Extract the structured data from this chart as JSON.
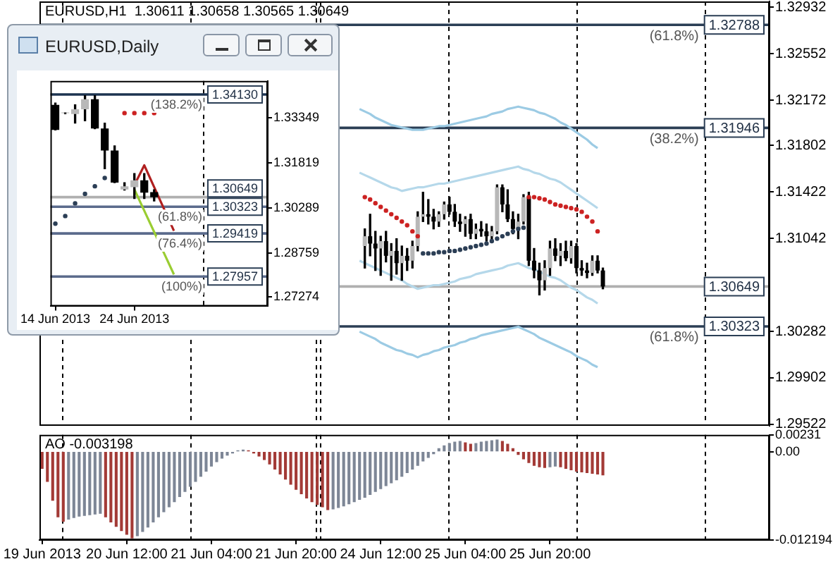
{
  "chart_data": [
    {
      "type": "candlestick",
      "title": "EURUSD,H1  1.30611 1.30658 1.30565 1.30649",
      "categories": [
        null,
        null,
        null,
        null,
        null,
        null,
        null,
        null,
        null,
        null,
        null,
        null,
        null,
        null,
        null,
        null,
        null,
        null,
        null,
        null,
        null,
        null,
        null,
        null,
        null,
        null,
        null,
        null,
        null,
        null,
        null,
        null,
        null,
        null,
        null,
        null,
        null,
        null,
        null,
        null,
        null,
        null,
        null,
        null,
        null,
        null,
        null,
        null,
        null,
        null,
        null,
        null,
        null,
        null,
        null,
        null,
        null,
        null,
        null,
        null,
        null,
        null,
        null,
        null,
        null,
        null,
        null,
        null,
        null,
        null,
        null,
        null,
        null,
        null,
        null,
        null,
        null,
        null,
        null,
        null,
        null,
        null,
        null,
        null,
        null,
        null,
        null,
        null,
        null,
        null,
        null,
        null,
        null,
        null,
        null,
        null,
        null,
        null,
        null,
        null,
        null,
        null,
        null,
        null,
        null,
        null,
        null,
        null,
        null,
        null,
        null,
        null,
        null,
        null,
        null,
        null,
        null,
        null,
        null,
        null,
        null,
        null,
        null,
        null,
        null,
        null,
        null,
        null,
        null,
        null,
        null,
        null,
        null,
        null,
        null,
        null,
        null,
        null
      ],
      "ohlc": [
        null,
        null,
        null,
        null,
        null,
        null,
        null,
        null,
        null,
        null,
        null,
        null,
        null,
        null,
        null,
        null,
        null,
        null,
        null,
        null,
        null,
        null,
        null,
        null,
        null,
        null,
        null,
        null,
        null,
        null,
        null,
        null,
        null,
        null,
        null,
        null,
        null,
        null,
        null,
        null,
        null,
        null,
        null,
        null,
        null,
        null,
        null,
        null,
        null,
        null,
        null,
        null,
        null,
        null,
        null,
        null,
        null,
        null,
        null,
        null,
        null,
        [
          1.3098,
          1.3112,
          1.308,
          1.3106
        ],
        [
          1.3106,
          1.3124,
          1.309,
          1.31
        ],
        [
          1.31,
          1.311,
          1.3078,
          1.3096
        ],
        [
          1.3096,
          1.3106,
          1.3074,
          1.3102
        ],
        [
          1.3102,
          1.311,
          1.3085,
          1.309
        ],
        [
          1.309,
          1.31,
          1.307,
          1.3094
        ],
        [
          1.3094,
          1.3104,
          1.3075,
          1.3084
        ],
        [
          1.3084,
          1.3098,
          1.307,
          1.309
        ],
        [
          1.309,
          1.3096,
          1.3078,
          1.3086
        ],
        [
          1.3086,
          1.3102,
          1.308,
          1.3098
        ],
        [
          1.3098,
          1.3126,
          1.3094,
          1.3122
        ],
        [
          1.3122,
          1.3142,
          1.3118,
          1.3124
        ],
        [
          1.3124,
          1.3136,
          1.3116,
          1.3122
        ],
        [
          1.3122,
          1.3128,
          1.3112,
          1.3118
        ],
        [
          1.3118,
          1.3126,
          1.3114,
          1.3124
        ],
        [
          1.3124,
          1.3134,
          1.312,
          1.3132
        ],
        [
          1.3132,
          1.3138,
          1.3124,
          1.3126
        ],
        [
          1.3126,
          1.3132,
          1.3114,
          1.3118
        ],
        [
          1.3118,
          1.3124,
          1.311,
          1.3116
        ],
        [
          1.3116,
          1.3122,
          1.3106,
          1.312
        ],
        [
          1.312,
          1.3124,
          1.3104,
          1.3108
        ],
        [
          1.3108,
          1.3116,
          1.3104,
          1.3112
        ],
        [
          1.3112,
          1.3118,
          1.3106,
          1.311
        ],
        [
          1.311,
          1.3116,
          1.3102,
          1.3106
        ],
        [
          1.3106,
          1.3114,
          1.3102,
          1.311
        ],
        [
          1.311,
          1.3148,
          1.3108,
          1.3146
        ],
        [
          1.3146,
          1.3148,
          1.3126,
          1.3132
        ],
        [
          1.3132,
          1.3144,
          1.3118,
          1.312
        ],
        [
          1.312,
          1.3126,
          1.3108,
          1.3112
        ],
        [
          1.3112,
          1.3124,
          1.3104,
          1.3118
        ],
        [
          1.3118,
          1.314,
          1.3116,
          1.3138
        ],
        [
          1.3138,
          1.3142,
          1.3082,
          1.3086
        ],
        [
          1.3086,
          1.3096,
          1.3072,
          1.3078
        ],
        [
          1.3078,
          1.3084,
          1.3058,
          1.307
        ],
        [
          1.307,
          1.3086,
          1.3062,
          1.308
        ],
        [
          1.308,
          1.3102,
          1.3074,
          1.3096
        ],
        [
          1.3096,
          1.3104,
          1.3086,
          1.309
        ],
        [
          1.309,
          1.31,
          1.3082,
          1.3094
        ],
        [
          1.3094,
          1.3102,
          1.3086,
          1.3088
        ],
        [
          1.3088,
          1.3102,
          1.3084,
          1.3098
        ],
        [
          1.3098,
          1.31,
          1.3076,
          1.308
        ],
        [
          1.308,
          1.3086,
          1.3074,
          1.3078
        ],
        [
          1.3078,
          1.3084,
          1.3072,
          1.3076
        ],
        [
          1.3076,
          1.309,
          1.3074,
          1.3086
        ],
        [
          1.3086,
          1.309,
          1.3076,
          1.3078
        ],
        [
          1.3078,
          1.308,
          1.3063,
          1.30649
        ],
        null,
        null,
        null,
        null,
        null,
        null,
        null,
        null,
        null,
        null,
        null,
        null,
        null,
        null,
        null,
        null,
        null,
        null,
        null,
        null,
        null,
        null,
        null,
        null,
        null,
        null,
        null,
        null,
        null,
        null,
        null
      ],
      "series": [
        {
          "type": "line",
          "color": "#9ccbe4",
          "values": [
            null,
            null,
            null,
            null,
            null,
            null,
            null,
            null,
            null,
            null,
            null,
            null,
            null,
            null,
            null,
            null,
            null,
            null,
            null,
            null,
            null,
            null,
            null,
            null,
            null,
            null,
            null,
            null,
            null,
            null,
            null,
            null,
            null,
            null,
            null,
            null,
            null,
            null,
            null,
            null,
            null,
            null,
            null,
            null,
            null,
            null,
            null,
            null,
            null,
            null,
            null,
            null,
            null,
            null,
            null,
            null,
            null,
            null,
            null,
            null,
            1.321,
            1.3208,
            1.3206,
            1.3203,
            1.3201,
            1.3199,
            1.3197,
            1.3196,
            1.3195,
            1.3194,
            1.3193,
            1.3193,
            1.3193,
            1.3194,
            1.3195,
            1.3196,
            1.3196,
            1.3197,
            1.3198,
            1.3199,
            1.32,
            1.3201,
            1.3202,
            1.3203,
            1.3204,
            1.3206,
            1.3207,
            1.3208,
            1.321,
            1.3211,
            1.3212,
            1.3211,
            1.321,
            1.3209,
            1.3207,
            1.3206,
            1.3204,
            1.3202,
            1.3199,
            1.3197,
            1.3194,
            1.3191,
            1.3188,
            1.3185,
            1.3181,
            1.3178,
            null,
            null,
            null,
            null,
            null,
            null,
            null,
            null,
            null,
            null,
            null,
            null,
            null,
            null,
            null,
            null,
            null,
            null,
            null,
            null,
            null,
            null,
            null,
            null,
            null,
            null,
            null,
            null,
            null,
            null,
            null,
            null
          ]
        },
        {
          "type": "line",
          "color": "#b5d8ea",
          "values": [
            null,
            null,
            null,
            null,
            null,
            null,
            null,
            null,
            null,
            null,
            null,
            null,
            null,
            null,
            null,
            null,
            null,
            null,
            null,
            null,
            null,
            null,
            null,
            null,
            null,
            null,
            null,
            null,
            null,
            null,
            null,
            null,
            null,
            null,
            null,
            null,
            null,
            null,
            null,
            null,
            null,
            null,
            null,
            null,
            null,
            null,
            null,
            null,
            null,
            null,
            null,
            null,
            null,
            null,
            null,
            null,
            null,
            null,
            null,
            null,
            1.3158,
            1.3156,
            1.3154,
            1.3152,
            1.315,
            1.3148,
            1.3146,
            1.3145,
            1.3143,
            1.3144,
            1.3145,
            1.3146,
            1.3146,
            1.3147,
            1.3148,
            1.3149,
            1.3149,
            1.315,
            1.3151,
            1.3152,
            1.3153,
            1.3154,
            1.3155,
            1.3156,
            1.3157,
            1.3158,
            1.3159,
            1.316,
            1.3161,
            1.3162,
            1.3163,
            1.3161,
            1.316,
            1.3158,
            1.3157,
            1.3155,
            1.3153,
            1.3152,
            1.315,
            1.3147,
            1.3144,
            1.3141,
            1.3138,
            1.3135,
            1.3132,
            1.3129,
            null,
            null,
            null,
            null,
            null,
            null,
            null,
            null,
            null,
            null,
            null,
            null,
            null,
            null,
            null,
            null,
            null,
            null,
            null,
            null,
            null,
            null,
            null,
            null,
            null,
            null,
            null,
            null,
            null,
            null,
            null,
            null
          ]
        },
        {
          "type": "line",
          "color": "#b5d8ea",
          "values": [
            null,
            null,
            null,
            null,
            null,
            null,
            null,
            null,
            null,
            null,
            null,
            null,
            null,
            null,
            null,
            null,
            null,
            null,
            null,
            null,
            null,
            null,
            null,
            null,
            null,
            null,
            null,
            null,
            null,
            null,
            null,
            null,
            null,
            null,
            null,
            null,
            null,
            null,
            null,
            null,
            null,
            null,
            null,
            null,
            null,
            null,
            null,
            null,
            null,
            null,
            null,
            null,
            null,
            null,
            null,
            null,
            null,
            null,
            null,
            null,
            1.3086,
            1.3084,
            1.3082,
            1.308,
            1.3078,
            1.3076,
            1.3074,
            1.3072,
            1.307,
            1.3067,
            1.3065,
            1.3063,
            1.3064,
            1.3065,
            1.3066,
            1.3066,
            1.3067,
            1.3068,
            1.3069,
            1.3071,
            1.3072,
            1.3073,
            1.3075,
            1.3076,
            1.3077,
            1.3078,
            1.3079,
            1.308,
            1.3082,
            1.3083,
            1.3084,
            1.3082,
            1.308,
            1.3079,
            1.3077,
            1.3075,
            1.3073,
            1.3072,
            1.307,
            1.3067,
            1.3064,
            1.3062,
            1.3059,
            1.3056,
            1.3054,
            1.3051,
            null,
            null,
            null,
            null,
            null,
            null,
            null,
            null,
            null,
            null,
            null,
            null,
            null,
            null,
            null,
            null,
            null,
            null,
            null,
            null,
            null,
            null,
            null,
            null,
            null,
            null,
            null,
            null,
            null,
            null,
            null,
            null
          ]
        },
        {
          "type": "line",
          "color": "#9ccbe4",
          "values": [
            null,
            null,
            null,
            null,
            null,
            null,
            null,
            null,
            null,
            null,
            null,
            null,
            null,
            null,
            null,
            null,
            null,
            null,
            null,
            null,
            null,
            null,
            null,
            null,
            null,
            null,
            null,
            null,
            null,
            null,
            null,
            null,
            null,
            null,
            null,
            null,
            null,
            null,
            null,
            null,
            null,
            null,
            null,
            null,
            null,
            null,
            null,
            null,
            null,
            null,
            null,
            null,
            null,
            null,
            null,
            null,
            null,
            null,
            null,
            null,
            1.3028,
            1.3026,
            1.3024,
            1.3022,
            1.3019,
            1.3017,
            1.3015,
            1.3013,
            1.3012,
            1.301,
            1.3009,
            1.3007,
            1.3009,
            1.301,
            1.3012,
            1.3013,
            1.3015,
            1.3016,
            1.3017,
            1.3019,
            1.302,
            1.3022,
            1.3023,
            1.3025,
            1.3026,
            1.3027,
            1.3028,
            1.3029,
            1.303,
            1.3031,
            1.3032,
            1.303,
            1.3028,
            1.3026,
            1.3023,
            1.3021,
            1.3019,
            1.3017,
            1.3015,
            1.3013,
            1.3011,
            1.3008,
            1.3006,
            1.3004,
            1.3001,
            1.2999,
            null,
            null,
            null,
            null,
            null,
            null,
            null,
            null,
            null,
            null,
            null,
            null,
            null,
            null,
            null,
            null,
            null,
            null,
            null,
            null,
            null,
            null,
            null,
            null,
            null,
            null,
            null,
            null,
            null,
            null,
            null,
            null
          ]
        },
        {
          "type": "scatter",
          "color": "#cc2222",
          "values": [
            null,
            null,
            null,
            null,
            null,
            null,
            null,
            null,
            null,
            null,
            null,
            null,
            null,
            null,
            null,
            null,
            null,
            null,
            null,
            null,
            null,
            null,
            null,
            null,
            null,
            null,
            null,
            null,
            null,
            null,
            null,
            null,
            null,
            null,
            null,
            null,
            null,
            null,
            null,
            null,
            null,
            null,
            null,
            null,
            null,
            null,
            null,
            null,
            null,
            null,
            null,
            null,
            null,
            null,
            null,
            null,
            null,
            null,
            null,
            null,
            null,
            1.3138,
            1.3136,
            1.3133,
            1.313,
            1.3127,
            1.3124,
            1.3121,
            1.3118,
            1.3115,
            1.311,
            1.3106,
            null,
            null,
            null,
            null,
            null,
            null,
            null,
            null,
            null,
            null,
            null,
            null,
            null,
            null,
            null,
            null,
            null,
            null,
            null,
            null,
            1.3138,
            1.3138,
            1.3137,
            1.3136,
            1.3134,
            1.3132,
            1.3131,
            1.313,
            1.3129,
            1.3128,
            1.3126,
            1.3122,
            1.3118,
            1.311,
            null,
            null,
            null,
            null,
            null,
            null,
            null,
            null,
            null,
            null,
            null,
            null,
            null,
            null,
            null,
            null,
            null,
            null,
            null,
            null,
            null,
            null,
            null,
            null,
            null,
            null,
            null,
            null,
            null,
            null,
            null,
            null
          ]
        },
        {
          "type": "scatter",
          "color": "#2b3e55",
          "values": [
            null,
            null,
            null,
            null,
            null,
            null,
            null,
            null,
            null,
            null,
            null,
            null,
            null,
            null,
            null,
            null,
            null,
            null,
            null,
            null,
            null,
            null,
            null,
            null,
            null,
            null,
            null,
            null,
            null,
            null,
            null,
            null,
            null,
            null,
            null,
            null,
            null,
            null,
            null,
            null,
            null,
            null,
            null,
            null,
            null,
            null,
            null,
            null,
            null,
            null,
            null,
            null,
            null,
            null,
            null,
            null,
            null,
            null,
            null,
            null,
            null,
            null,
            null,
            null,
            null,
            null,
            null,
            null,
            null,
            null,
            null,
            null,
            1.3092,
            1.3092,
            1.3092,
            1.3093,
            1.3093,
            1.3094,
            1.3094,
            1.3095,
            1.3096,
            1.3097,
            1.3098,
            1.3099,
            1.31,
            1.3102,
            1.3104,
            1.3106,
            1.3108,
            1.311,
            1.3112,
            1.3113,
            null,
            null,
            null,
            null,
            null,
            null,
            null,
            null,
            null,
            null,
            null,
            null,
            null,
            null,
            null,
            null,
            null,
            null,
            null,
            null,
            null,
            null,
            null,
            null,
            null,
            null,
            null,
            null,
            null,
            null,
            null,
            null,
            null,
            null,
            null,
            null,
            null,
            null,
            null,
            null,
            null,
            null,
            null,
            null,
            null,
            null
          ]
        }
      ],
      "ylim": [
        1.2951,
        1.3298
      ],
      "yticks": [
        1.32932,
        1.32552,
        1.32172,
        1.31802,
        1.31422,
        1.31042,
        1.30282,
        1.29902,
        1.29522
      ],
      "tick_labels": "y",
      "ref_lines": [
        {
          "axis": "y",
          "value": 1.32788,
          "label": "1.32788",
          "color": "#2b3e55"
        },
        {
          "axis": "y",
          "value": 1.31946,
          "label": "1.31946",
          "color": "#2b3e55"
        },
        {
          "axis": "y",
          "value": 1.30323,
          "label": "1.30323",
          "color": "#2b3e55"
        },
        {
          "axis": "y",
          "value": 1.30649,
          "label": "1.30649",
          "color": "#b0b0b0"
        }
      ],
      "annotations": [
        {
          "text": "(61.8%)",
          "y": 1.32788
        },
        {
          "text": "(38.2%)",
          "y": 1.31946
        },
        {
          "text": "(61.8%)",
          "y": 1.30323
        }
      ]
    },
    {
      "type": "candlestick",
      "title": "EURUSD,Daily",
      "categories": [
        "14 Jun 2013",
        null,
        null,
        null,
        null,
        null,
        null,
        null,
        "24 Jun 2013",
        null,
        null,
        null,
        null,
        null,
        null,
        null,
        null,
        null,
        null,
        null,
        null,
        null
      ],
      "ohlc": [
        [
          1.3378,
          1.3384,
          1.3293,
          1.3293
        ],
        [
          1.335,
          1.3352,
          1.3348,
          1.3352
        ],
        [
          1.3347,
          1.3378,
          1.3316,
          1.3363
        ],
        [
          1.3363,
          1.3409,
          1.3324,
          1.3397
        ],
        [
          1.3397,
          1.3409,
          1.3297,
          1.3298
        ],
        [
          1.3298,
          1.3316,
          1.3161,
          1.3223
        ],
        [
          1.3223,
          1.3239,
          1.3114,
          1.3114
        ],
        [
          1.3091,
          1.3114,
          1.3089,
          1.3102
        ],
        [
          1.3099,
          1.3145,
          1.306,
          1.3122
        ],
        [
          1.3122,
          1.3145,
          1.306,
          1.308
        ],
        [
          1.3082,
          1.309,
          1.3052,
          1.30649
        ],
        null,
        null,
        null,
        null,
        null,
        null,
        null,
        null,
        null,
        null,
        null
      ],
      "series": [
        {
          "type": "line",
          "color": "#b02020",
          "values": [
            null,
            null,
            null,
            null,
            null,
            null,
            null,
            null,
            1.3106,
            1.3173,
            1.3099,
            1.3025,
            1.2951,
            null,
            null,
            null,
            null,
            null,
            null,
            null,
            null,
            null
          ]
        },
        {
          "type": "line",
          "color": "#9acd32",
          "values": [
            null,
            null,
            null,
            null,
            null,
            null,
            null,
            null,
            1.3091,
            1.3019,
            1.2947,
            1.2875,
            1.2803,
            null,
            null,
            null,
            null,
            null,
            null,
            null,
            null,
            null
          ]
        },
        {
          "type": "scatter",
          "color": "#cc2222",
          "values": [
            null,
            null,
            null,
            null,
            null,
            null,
            null,
            1.335,
            1.335,
            1.335,
            1.335,
            null,
            null,
            null,
            null,
            null,
            null,
            null,
            null,
            null,
            null,
            null
          ]
        },
        {
          "type": "scatter",
          "color": "#2b3e55",
          "values": [
            1.2975,
            1.3001,
            1.3044,
            1.3076,
            1.3102,
            1.313,
            null,
            null,
            null,
            null,
            null,
            null,
            null,
            null,
            null,
            null,
            null,
            null,
            null,
            null,
            null,
            null
          ]
        }
      ],
      "ylim": [
        1.2695,
        1.3459
      ],
      "yticks": [
        1.33349,
        1.31819,
        1.30289,
        1.28759,
        1.27274
      ],
      "ref_lines": [
        {
          "axis": "y",
          "value": 1.3413,
          "label": "1.34130",
          "color": "#1c3350"
        },
        {
          "axis": "y",
          "value": 1.30323,
          "label": "1.30323",
          "color": "#5b6b8c"
        },
        {
          "axis": "y",
          "value": 1.29419,
          "label": "1.29419",
          "color": "#5b6b8c"
        },
        {
          "axis": "y",
          "value": 1.27957,
          "label": "1.27957",
          "color": "#5b6b8c"
        },
        {
          "axis": "y",
          "value": 1.30649,
          "label": "1.30649",
          "color": "#b0b0b0"
        }
      ],
      "annotations": [
        {
          "text": "(138.2%)",
          "y": 1.3413
        },
        {
          "text": "(61.8%)",
          "y": 1.30323
        },
        {
          "text": "(76.4%)",
          "y": 1.29419
        },
        {
          "text": "(100%)",
          "y": 1.27957
        }
      ]
    },
    {
      "type": "bar",
      "title": "AO -0.003198",
      "categories": [
        "19 Jun 2013",
        null,
        null,
        null,
        null,
        null,
        null,
        null,
        null,
        null,
        null,
        null,
        null,
        null,
        null,
        null,
        "20 Jun 12:00",
        null,
        null,
        null,
        null,
        null,
        null,
        null,
        null,
        null,
        null,
        null,
        null,
        null,
        null,
        null,
        "21 Jun 04:00",
        null,
        null,
        null,
        null,
        null,
        null,
        null,
        null,
        null,
        null,
        null,
        null,
        null,
        null,
        null,
        "21 Jun 20:00",
        null,
        null,
        null,
        null,
        null,
        null,
        null,
        null,
        null,
        null,
        null,
        null,
        null,
        null,
        null,
        "24 Jun 12:00",
        null,
        null,
        null,
        null,
        null,
        null,
        null,
        null,
        null,
        null,
        null,
        null,
        null,
        null,
        null,
        "25 Jun 04:00",
        null,
        null,
        null,
        null,
        null,
        null,
        null,
        null,
        null,
        null,
        null,
        null,
        null,
        null,
        null,
        "25 Jun 20:00",
        null,
        null,
        null,
        null,
        null,
        null,
        null,
        null,
        null,
        null,
        null,
        null,
        null,
        null,
        null,
        null,
        null,
        null,
        null,
        null,
        null,
        null,
        null,
        null,
        null,
        null,
        null,
        null,
        null,
        null,
        null,
        null,
        null,
        null,
        null,
        null,
        null,
        null,
        null,
        null,
        null
      ],
      "values": [
        -0.0023,
        -0.0041,
        -0.0067,
        -0.009,
        -0.0096,
        -0.0093,
        -0.0091,
        -0.0089,
        -0.0088,
        -0.0087,
        -0.0086,
        -0.0085,
        -0.009,
        -0.0097,
        -0.0103,
        -0.0109,
        -0.0114,
        -0.0119,
        -0.0116,
        -0.011,
        -0.0104,
        -0.0097,
        -0.009,
        -0.0083,
        -0.0076,
        -0.0069,
        -0.0062,
        -0.0055,
        -0.0048,
        -0.0041,
        -0.0034,
        -0.0027,
        -0.002,
        -0.0014,
        -0.0009,
        -0.0005,
        -0.0002,
        0.0001,
        0.0002,
        0.0001,
        -0.0002,
        -0.0006,
        -0.0011,
        -0.0017,
        -0.0024,
        -0.0031,
        -0.0038,
        -0.0045,
        -0.0052,
        -0.0058,
        -0.0064,
        -0.0069,
        -0.0073,
        -0.0076,
        -0.008,
        -0.0079,
        -0.0077,
        -0.0075,
        -0.0072,
        -0.0069,
        -0.0066,
        -0.0063,
        -0.0059,
        -0.0055,
        -0.0051,
        -0.0047,
        -0.0043,
        -0.0039,
        -0.0034,
        -0.0029,
        -0.0024,
        -0.0019,
        -0.0013,
        -0.0008,
        -0.0003,
        0.0004,
        0.0008,
        0.0011,
        0.0013,
        0.0014,
        0.0012,
        0.001,
        0.0011,
        0.0013,
        0.0014,
        0.0015,
        0.0016,
        0.0014,
        0.001,
        0.0004,
        -0.0004,
        -0.001,
        -0.0015,
        -0.0019,
        -0.0021,
        -0.0022,
        -0.0021,
        -0.002,
        -0.0021,
        -0.0023,
        -0.0025,
        -0.0027,
        -0.0028,
        -0.0029,
        -0.003,
        -0.0031,
        -0.0032,
        null,
        null,
        null,
        null,
        null,
        null,
        null,
        null,
        null,
        null,
        null,
        null,
        null,
        null,
        null,
        null,
        null,
        null,
        null,
        null,
        null,
        null,
        null,
        null,
        null,
        null,
        null,
        null,
        null,
        null,
        null
      ],
      "colors": [
        "#a33a36",
        "#a33a36",
        "#a33a36",
        "#a33a36",
        "#a33a36",
        "#7d8696",
        "#7d8696",
        "#7d8696",
        "#7d8696",
        "#7d8696",
        "#7d8696",
        "#7d8696",
        "#a33a36",
        "#a33a36",
        "#a33a36",
        "#a33a36",
        "#a33a36",
        "#a33a36",
        "#7d8696",
        "#7d8696",
        "#7d8696",
        "#7d8696",
        "#7d8696",
        "#7d8696",
        "#7d8696",
        "#7d8696",
        "#7d8696",
        "#7d8696",
        "#7d8696",
        "#7d8696",
        "#7d8696",
        "#7d8696",
        "#7d8696",
        "#7d8696",
        "#7d8696",
        "#7d8696",
        "#7d8696",
        "#7d8696",
        "#7d8696",
        "#a33a36",
        "#a33a36",
        "#a33a36",
        "#a33a36",
        "#a33a36",
        "#a33a36",
        "#a33a36",
        "#a33a36",
        "#a33a36",
        "#a33a36",
        "#a33a36",
        "#a33a36",
        "#a33a36",
        "#a33a36",
        "#a33a36",
        "#a33a36",
        "#7d8696",
        "#7d8696",
        "#7d8696",
        "#7d8696",
        "#7d8696",
        "#7d8696",
        "#7d8696",
        "#7d8696",
        "#7d8696",
        "#7d8696",
        "#7d8696",
        "#7d8696",
        "#7d8696",
        "#7d8696",
        "#7d8696",
        "#7d8696",
        "#7d8696",
        "#7d8696",
        "#7d8696",
        "#7d8696",
        "#7d8696",
        "#7d8696",
        "#7d8696",
        "#7d8696",
        "#7d8696",
        "#a33a36",
        "#a33a36",
        "#7d8696",
        "#7d8696",
        "#7d8696",
        "#7d8696",
        "#7d8696",
        "#a33a36",
        "#a33a36",
        "#a33a36",
        "#a33a36",
        "#a33a36",
        "#a33a36",
        "#a33a36",
        "#a33a36",
        "#a33a36",
        "#7d8696",
        "#7d8696",
        "#a33a36",
        "#a33a36",
        "#a33a36",
        "#a33a36",
        "#a33a36",
        "#a33a36",
        "#a33a36",
        "#a33a36",
        "#a33a36",
        null,
        null,
        null,
        null,
        null,
        null,
        null,
        null,
        null,
        null,
        null,
        null,
        null,
        null,
        null,
        null,
        null,
        null,
        null,
        null,
        null,
        null,
        null,
        null,
        null,
        null,
        null,
        null,
        null,
        null,
        null
      ],
      "ylim": [
        -0.012194,
        0.00231
      ],
      "yticks": [
        0.00231,
        {
          "value": 0,
          "label": "0.00"
        },
        -0.012194
      ]
    }
  ]
}
